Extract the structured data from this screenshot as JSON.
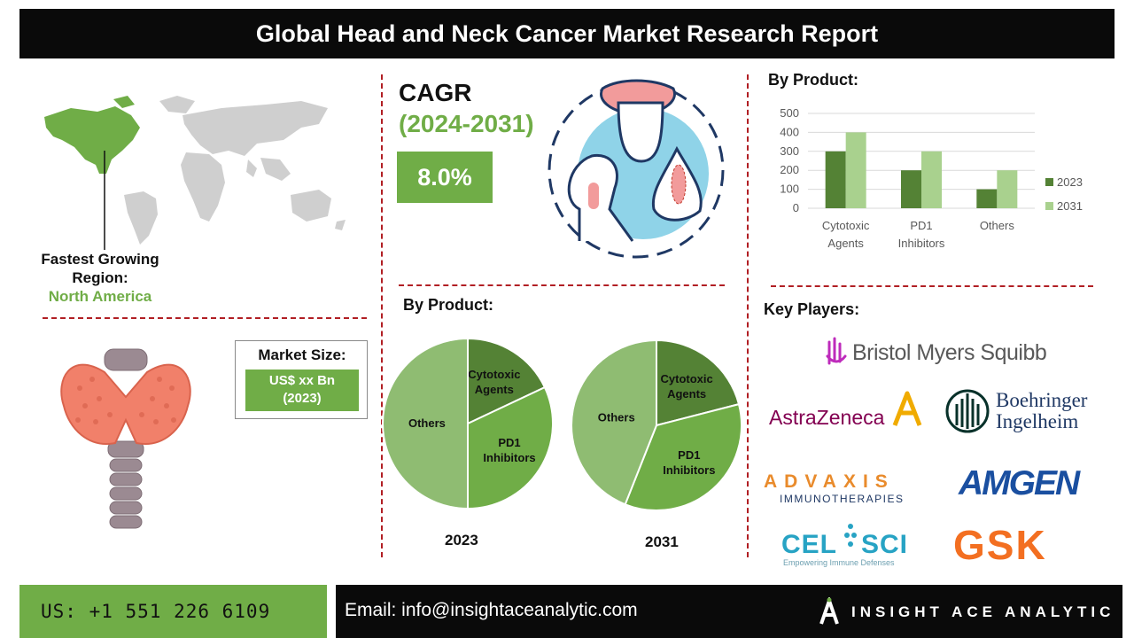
{
  "title": "Global Head and Neck Cancer Market Research Report",
  "region": {
    "heading": "Fastest Growing Region:",
    "value": "North America"
  },
  "market_size": {
    "label": "Market Size:",
    "value_line1": "US$ xx Bn",
    "value_line2": "(2023)"
  },
  "cagr": {
    "label": "CAGR",
    "period": "(2024-2031)",
    "value": "8.0%"
  },
  "pie_section_title": "By Product:",
  "bar_section_title": "By Product:",
  "key_players_title": "Key Players:",
  "key_players": [
    "Bristol Myers Squibb",
    "AstraZeneca",
    "Boehringer Ingelheim",
    "ADVAXIS IMMUNOTHERAPIES",
    "AMGEN",
    "CEL-SCI",
    "GSK"
  ],
  "logo_text": {
    "bms": "Bristol Myers Squibb",
    "astrazeneca": "AstraZeneca",
    "boehringer_1": "Boehringer",
    "boehringer_2": "Ingelheim",
    "advaxis": "ADVAXIS",
    "advaxis_sub": "IMMUNOTHERAPIES",
    "amgen": "AMGEN",
    "celsci_1": "CEL",
    "celsci_2": "SCI",
    "celsci_sub": "Empowering Immune Defenses",
    "gsk": "GSK"
  },
  "colors": {
    "accent_green": "#70ad47",
    "dark_green": "#548235",
    "light_green": "#a9d18e",
    "divider_red": "#b11f24",
    "pie_others": "#8fbc72"
  },
  "chart_data": [
    {
      "type": "bar",
      "categories": [
        "Cytotoxic Agents",
        "PD1 Inhibitors",
        "Others"
      ],
      "category_lines": [
        [
          "Cytotoxic",
          "Agents"
        ],
        [
          "PD1",
          "Inhibitors"
        ],
        [
          "Others"
        ]
      ],
      "series": [
        {
          "name": "2023",
          "values": [
            300,
            200,
            100
          ]
        },
        {
          "name": "2031",
          "values": [
            400,
            300,
            200
          ]
        }
      ],
      "ylim": [
        0,
        500
      ],
      "yticks": [
        "0",
        "100",
        "200",
        "300",
        "400",
        "500"
      ],
      "grid": true,
      "legend": "right"
    },
    {
      "type": "pie",
      "title": "2023",
      "labels": [
        "Cytotoxic Agents",
        "PD1 Inhibitors",
        "Others"
      ],
      "label_lines": [
        [
          "Cytotoxic",
          "Agents"
        ],
        [
          "PD1",
          "Inhibitors"
        ],
        [
          "Others"
        ]
      ],
      "values": [
        18,
        32,
        50
      ]
    },
    {
      "type": "pie",
      "title": "2031",
      "labels": [
        "Cytotoxic Agents",
        "PD1 Inhibitors",
        "Others"
      ],
      "label_lines": [
        [
          "Cytotoxic",
          "Agents"
        ],
        [
          "PD1",
          "Inhibitors"
        ],
        [
          "Others"
        ]
      ],
      "values": [
        21,
        35,
        44
      ]
    }
  ],
  "footer": {
    "phone": "US: +1 551 226 6109",
    "email": "Email: info@insightaceanalytic.com",
    "brand": "INSIGHT ACE ANALYTIC"
  }
}
